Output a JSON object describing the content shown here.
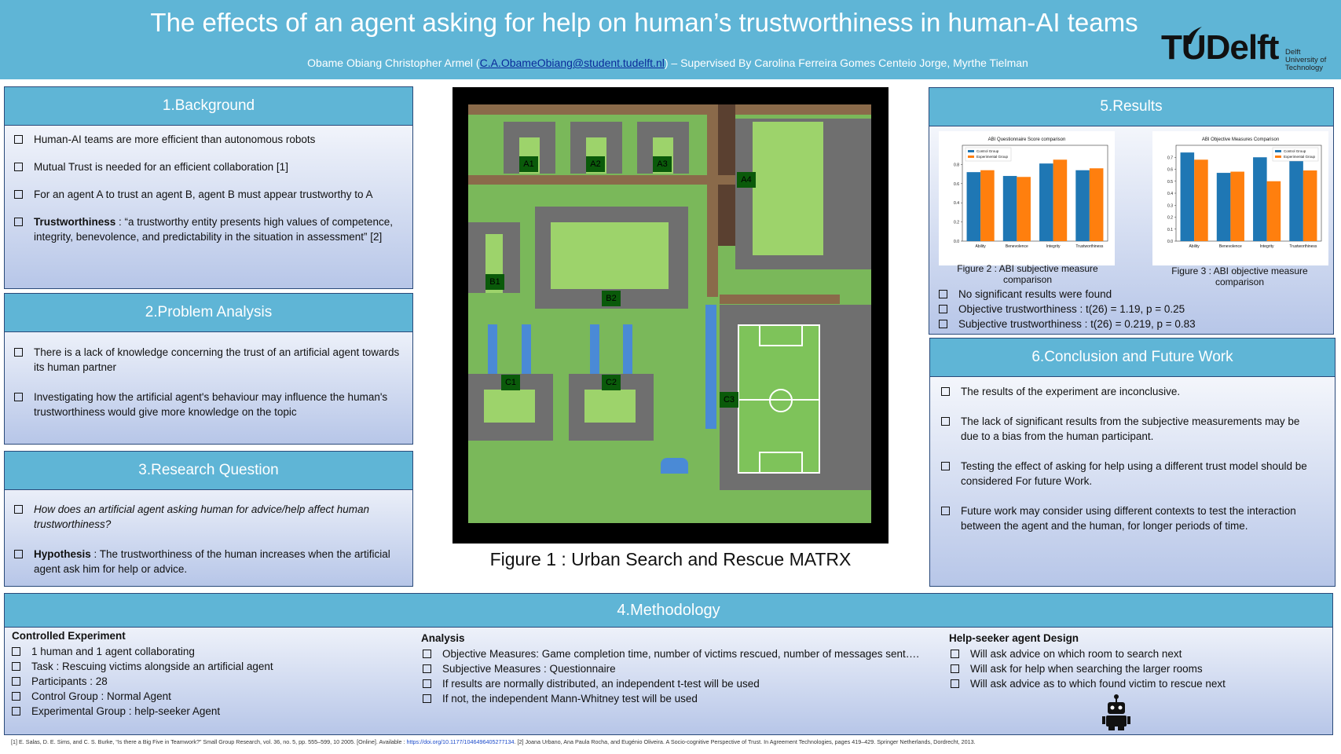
{
  "header": {
    "title": "The effects of an agent asking for help on human’s trustworthiness in human-AI teams",
    "author": "Obame Obiang Christopher Armel (",
    "email": "C.A.ObameObiang@student.tudelft.nl",
    "supervised": ") – Supervised By Carolina Ferreira Gomes Centeio Jorge, Myrthe Tielman",
    "logo_text": "TUDelft",
    "logo_univ": [
      "Delft",
      "University of",
      "Technology"
    ]
  },
  "background": {
    "heading": "1.Background",
    "items": [
      "Human-AI teams are more  efficient than autonomous  robots",
      "Mutual Trust is needed for an efficient collaboration [1]",
      "For an agent A to trust an agent B, agent B must appear trustworthy  to A"
    ],
    "trust_term": "Trustworthiness",
    "trust_def": " : “a trustworthy entity presents high  values of competence, integrity, benevolence, and  predictability in the situation in assessment” [2]"
  },
  "problem": {
    "heading": "2.Problem Analysis",
    "items": [
      "There is a lack of knowledge  concerning the trust of an artificial agent towards its human partner",
      "Investigating how the artificial agent's behaviour may influence the human's trustworthiness would give more knowledge on the topic"
    ]
  },
  "research": {
    "heading": "3.Research Question",
    "question": "How does an artificial agent asking human for advice/help affect human trustworthiness?",
    "hyp_term": "Hypothesis",
    "hyp_text": " : The trustworthiness of the human increases when the artificial agent ask him for help or advice."
  },
  "figure1": {
    "caption": "Figure 1 : Urban Search and Rescue MATRX",
    "doors": [
      "A1",
      "A2",
      "A3",
      "A4",
      "B1",
      "B2",
      "C1",
      "C2",
      "C3"
    ]
  },
  "results": {
    "heading": "5.Results",
    "fig2_caption": "Figure 2 : ABI subjective measure comparison",
    "fig3_caption": "Figure 3 : ABI objective measure comparison",
    "items": [
      "No significant results were found",
      "Objective trustworthiness  : t(26) = 1.19, p = 0.25",
      "Subjective trustworthiness  : t(26) = 0.219, p = 0.83"
    ]
  },
  "conclusion": {
    "heading": "6.Conclusion and Future Work",
    "items": [
      "The results of the experiment are inconclusive.",
      "The lack of significant results from the subjective measurements may be due to a bias from the human participant.",
      "Testing the effect of asking for help using a different trust model should be considered For future Work.",
      "Future work may consider using different contexts to test the interaction between the agent and the human, for longer periods of time."
    ]
  },
  "methodology": {
    "heading": "4.Methodology",
    "controlled": {
      "title": "Controlled Experiment",
      "items": [
        "1 human and 1 agent collaborating",
        "Task : Rescuing victims alongside an artificial agent",
        "Participants : 28",
        "Control Group : Normal Agent",
        "Experimental Group :  help-seeker Agent"
      ]
    },
    "analysis": {
      "title": "Analysis",
      "items": [
        "Objective Measures: Game completion time, number  of victims rescued, number of messages sent….",
        "Subjective Measures : Questionnaire",
        "If results are normally distributed, an independent  t-test will be used",
        "If not, the independent Mann-Whitney test will be used"
      ]
    },
    "design": {
      "title": "Help-seeker agent Design",
      "items": [
        "Will ask advice on which room to search next",
        "Will ask for help when searching the larger rooms",
        "Will ask advice as to which found victim to rescue next"
      ]
    }
  },
  "references": {
    "ref1": "[1] E. Salas, D. E. Sims, and C. S. Burke, “Is there a Big Five in Teamwork?” Small Group Research, vol. 36, no. 5, pp. 555–599,  10 2005. [Online]. Available : ",
    "ref1_link": "https://doi.org/10.1177/1046496405277134",
    "ref2": ".  [2] Joana Urbano, Ana Paula Rocha, and Eugénio Oliveira. A Socio-cognitive Perspective of Trust. In Agreement Technologies, pages 419–429. Springer Netherlands, Dordrecht, 2013."
  },
  "chart_data": [
    {
      "type": "bar",
      "title": "ABI Questionnaire Score comparison",
      "categories": [
        "Ability",
        "Benevolence",
        "Integrity",
        "Trustworthiness"
      ],
      "series": [
        {
          "name": "Control Group",
          "values": [
            0.72,
            0.68,
            0.81,
            0.74
          ],
          "color": "#1f77b4"
        },
        {
          "name": "Experimental Group",
          "values": [
            0.74,
            0.67,
            0.85,
            0.76
          ],
          "color": "#ff7f0e"
        }
      ],
      "ylim": [
        0,
        1.0
      ],
      "yticks": [
        "0.0",
        "0.2",
        "0.4",
        "0.6",
        "0.8"
      ],
      "legend": "top-left"
    },
    {
      "type": "bar",
      "title": "ABI Objective Measures Comparison",
      "categories": [
        "Ability",
        "Benevolence",
        "Integrity",
        "Trustworthiness"
      ],
      "series": [
        {
          "name": "Control Group",
          "values": [
            0.74,
            0.57,
            0.7,
            0.67
          ],
          "color": "#1f77b4"
        },
        {
          "name": "Experimental Group",
          "values": [
            0.68,
            0.58,
            0.5,
            0.59
          ],
          "color": "#ff7f0e"
        }
      ],
      "ylim": [
        0,
        0.8
      ],
      "yticks": [
        "0.0",
        "0.1",
        "0.2",
        "0.3",
        "0.4",
        "0.5",
        "0.6",
        "0.7"
      ],
      "legend": "top-right"
    }
  ]
}
